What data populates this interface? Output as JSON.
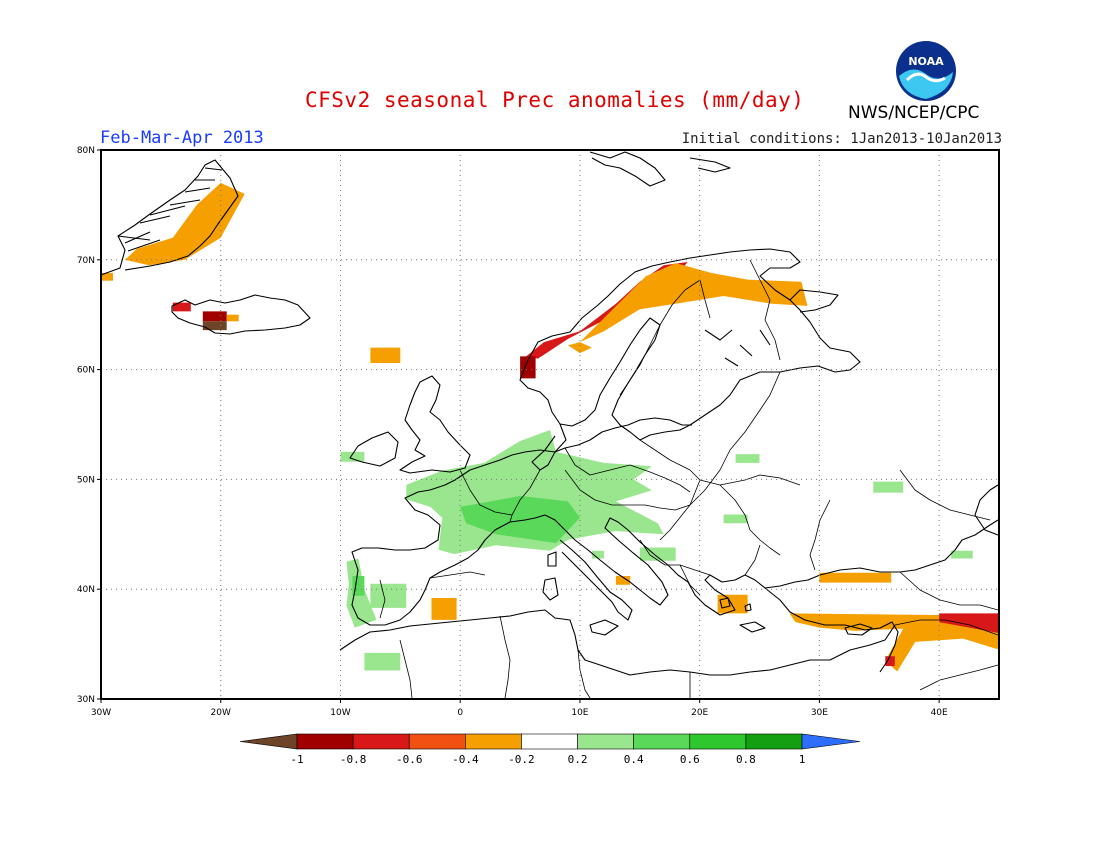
{
  "header": {
    "title": "CFSv2 seasonal Prec anomalies (mm/day)",
    "period": "Feb-Mar-Apr 2013",
    "initial_conditions": "Initial conditions: 1Jan2013-10Jan2013",
    "organization": "NWS/NCEP/CPC",
    "logo_text": "NOAA"
  },
  "map": {
    "lon_range": [
      -30,
      45
    ],
    "lat_range": [
      30,
      80
    ],
    "lon_ticks": [
      {
        "value": -30,
        "label": "30W"
      },
      {
        "value": -20,
        "label": "20W"
      },
      {
        "value": -10,
        "label": "10W"
      },
      {
        "value": 0,
        "label": "0"
      },
      {
        "value": 10,
        "label": "10E"
      },
      {
        "value": 20,
        "label": "20E"
      },
      {
        "value": 30,
        "label": "30E"
      },
      {
        "value": 40,
        "label": "40E"
      }
    ],
    "lat_ticks": [
      {
        "value": 80,
        "label": "80N"
      },
      {
        "value": 70,
        "label": "70N"
      },
      {
        "value": 60,
        "label": "60N"
      },
      {
        "value": 50,
        "label": "50N"
      },
      {
        "value": 40,
        "label": "40N"
      },
      {
        "value": 30,
        "label": "30N"
      }
    ],
    "grid": "dotted"
  },
  "colorbar": {
    "ticks": [
      "-1",
      "-0.8",
      "-0.6",
      "-0.4",
      "-0.2",
      "0.2",
      "0.4",
      "0.6",
      "0.8",
      "1"
    ],
    "colors": [
      "#6e4428",
      "#a00000",
      "#d81818",
      "#f05010",
      "#f5a000",
      "#ffffff",
      "#9ae68e",
      "#5ad85a",
      "#2ec82e",
      "#12a012",
      "#2e6eff"
    ]
  },
  "anomaly_regions": [
    {
      "region": "Greenland east coast",
      "level": -0.3,
      "points": [
        [
          -27,
          71
        ],
        [
          -24,
          72
        ],
        [
          -22,
          75
        ],
        [
          -20,
          77
        ],
        [
          -18,
          76
        ],
        [
          -20,
          72
        ],
        [
          -23,
          70
        ],
        [
          -26,
          69.5
        ],
        [
          -28,
          70
        ]
      ]
    },
    {
      "region": "Greenland south-east tip",
      "level": -0.3,
      "points": [
        [
          -30,
          68.8
        ],
        [
          -29,
          68.8
        ],
        [
          -29,
          68.1
        ],
        [
          -30,
          68.1
        ]
      ]
    },
    {
      "region": "Iceland north-west",
      "level": -0.6,
      "points": [
        [
          -24,
          66.1
        ],
        [
          -22.5,
          66.1
        ],
        [
          -22.5,
          65.3
        ],
        [
          -24,
          65.3
        ]
      ]
    },
    {
      "region": "Iceland south",
      "level": -0.9,
      "points": [
        [
          -21.5,
          65.3
        ],
        [
          -19.5,
          65.3
        ],
        [
          -19.5,
          64.4
        ],
        [
          -21.5,
          64.4
        ]
      ]
    },
    {
      "region": "Iceland south coast",
      "level": -1.0,
      "points": [
        [
          -21.5,
          64.4
        ],
        [
          -19.5,
          64.4
        ],
        [
          -19.5,
          63.6
        ],
        [
          -21.5,
          63.6
        ]
      ]
    },
    {
      "region": "Iceland east",
      "level": -0.3,
      "points": [
        [
          -19.5,
          65
        ],
        [
          -18.5,
          65
        ],
        [
          -18.5,
          64.4
        ],
        [
          -19.5,
          64.4
        ]
      ]
    },
    {
      "region": "Faroe Islands",
      "level": -0.3,
      "points": [
        [
          -7.5,
          62
        ],
        [
          -5,
          62
        ],
        [
          -5,
          60.6
        ],
        [
          -7.5,
          60.6
        ]
      ]
    },
    {
      "region": "Norway coast",
      "level": -0.7,
      "points": [
        [
          5.5,
          61.2
        ],
        [
          7,
          62.5
        ],
        [
          10,
          63.5
        ],
        [
          13,
          66
        ],
        [
          15,
          68
        ],
        [
          17,
          69.5
        ],
        [
          19,
          69.8
        ],
        [
          18,
          68.5
        ],
        [
          15,
          66.5
        ],
        [
          12,
          64.5
        ],
        [
          9,
          62.8
        ],
        [
          6.5,
          61
        ]
      ]
    },
    {
      "region": "Western Norway",
      "level": -0.9,
      "points": [
        [
          5,
          61.2
        ],
        [
          6.3,
          61.2
        ],
        [
          6.3,
          59.2
        ],
        [
          5,
          59.2
        ]
      ]
    },
    {
      "region": "Northern Scandinavia",
      "level": -0.3,
      "points": [
        [
          15.5,
          68.5
        ],
        [
          18,
          69.7
        ],
        [
          21,
          68.8
        ],
        [
          24,
          68.2
        ],
        [
          28.5,
          68
        ],
        [
          29,
          65.8
        ],
        [
          26,
          66
        ],
        [
          22,
          66.7
        ],
        [
          18,
          66
        ],
        [
          15,
          65.5
        ],
        [
          12,
          63.5
        ],
        [
          10,
          62.5
        ]
      ]
    },
    {
      "region": "Norway inland",
      "level": -0.3,
      "points": [
        [
          10,
          62.5
        ],
        [
          11,
          62
        ],
        [
          10,
          61.5
        ],
        [
          9,
          62.2
        ]
      ]
    },
    {
      "region": "Western Europe",
      "level": 0.3,
      "points": [
        [
          -4.5,
          49.5
        ],
        [
          -1.5,
          50.8
        ],
        [
          2,
          51.5
        ],
        [
          5,
          53.5
        ],
        [
          7.5,
          54.5
        ],
        [
          8,
          52.5
        ],
        [
          12,
          51.5
        ],
        [
          16,
          51.2
        ],
        [
          14.5,
          50
        ],
        [
          16,
          49
        ],
        [
          13,
          48
        ],
        [
          16.5,
          46
        ],
        [
          17,
          45
        ],
        [
          13,
          45.3
        ],
        [
          9,
          44.5
        ],
        [
          7.5,
          43.5
        ],
        [
          3,
          44
        ],
        [
          -0.5,
          43.2
        ],
        [
          -1.8,
          43.6
        ],
        [
          -1.5,
          46.5
        ],
        [
          -2.5,
          47.5
        ],
        [
          -4.5,
          48.2
        ]
      ]
    },
    {
      "region": "Central France",
      "level": 0.5,
      "points": [
        [
          0,
          47.5
        ],
        [
          5,
          48.5
        ],
        [
          9,
          48
        ],
        [
          10,
          46.5
        ],
        [
          8,
          44.2
        ],
        [
          3,
          45
        ],
        [
          0.5,
          46
        ]
      ]
    },
    {
      "region": "Ireland",
      "level": 0.3,
      "points": [
        [
          -10,
          52.5
        ],
        [
          -8,
          52.5
        ],
        [
          -8,
          51.6
        ],
        [
          -10,
          51.6
        ]
      ]
    },
    {
      "region": "Iberian west coast",
      "level": 0.4,
      "points": [
        [
          -9.5,
          42.5
        ],
        [
          -8.5,
          42.8
        ],
        [
          -8,
          40
        ],
        [
          -7,
          37.2
        ],
        [
          -8.8,
          36.5
        ],
        [
          -9.5,
          38.5
        ],
        [
          -9.3,
          40.5
        ]
      ]
    },
    {
      "region": "Portugal",
      "level": 0.6,
      "points": [
        [
          -9,
          41.2
        ],
        [
          -8,
          41.2
        ],
        [
          -8,
          39.4
        ],
        [
          -9,
          39.4
        ]
      ]
    },
    {
      "region": "Western Iberia",
      "level": 0.3,
      "points": [
        [
          -7.5,
          40.5
        ],
        [
          -4.5,
          40.5
        ],
        [
          -4.5,
          38.3
        ],
        [
          -7.5,
          38.3
        ]
      ]
    },
    {
      "region": "Morocco",
      "level": 0.3,
      "points": [
        [
          -8,
          34.2
        ],
        [
          -5,
          34.2
        ],
        [
          -5,
          32.6
        ],
        [
          -8,
          32.6
        ]
      ]
    },
    {
      "region": "Eastern Spain",
      "level": -0.3,
      "points": [
        [
          -2.4,
          39.2
        ],
        [
          -0.3,
          39.2
        ],
        [
          -0.3,
          37.2
        ],
        [
          -2.4,
          37.2
        ]
      ]
    },
    {
      "region": "Ukraine",
      "level": 0.3,
      "points": [
        [
          23,
          52.3
        ],
        [
          25,
          52.3
        ],
        [
          25,
          51.5
        ],
        [
          23,
          51.5
        ]
      ]
    },
    {
      "region": "Black Sea north",
      "level": 0.3,
      "points": [
        [
          34.5,
          49.8
        ],
        [
          37,
          49.8
        ],
        [
          37,
          48.8
        ],
        [
          34.5,
          48.8
        ]
      ]
    },
    {
      "region": "Hungary",
      "level": 0.3,
      "points": [
        [
          22,
          46.8
        ],
        [
          24,
          46.8
        ],
        [
          24,
          46
        ],
        [
          22,
          46
        ]
      ]
    },
    {
      "region": "Caucasus",
      "level": 0.3,
      "points": [
        [
          41,
          43.5
        ],
        [
          42.8,
          43.5
        ],
        [
          42.8,
          42.8
        ],
        [
          41,
          42.8
        ]
      ]
    },
    {
      "region": "Balkans",
      "level": 0.3,
      "points": [
        [
          15,
          43.8
        ],
        [
          18,
          43.8
        ],
        [
          18,
          42.6
        ],
        [
          15,
          42.6
        ]
      ]
    },
    {
      "region": "Italy",
      "level": 0.3,
      "points": [
        [
          11,
          43.5
        ],
        [
          12,
          43.5
        ],
        [
          12,
          42.8
        ],
        [
          11,
          42.8
        ]
      ]
    },
    {
      "region": "Southern Italy",
      "level": -0.3,
      "points": [
        [
          13,
          41.2
        ],
        [
          14.2,
          41.2
        ],
        [
          14.2,
          40.4
        ],
        [
          13,
          40.4
        ]
      ]
    },
    {
      "region": "Greece",
      "level": -0.3,
      "points": [
        [
          21.5,
          39.5
        ],
        [
          24,
          39.5
        ],
        [
          24,
          37.8
        ],
        [
          21.5,
          37.8
        ]
      ]
    },
    {
      "region": "Black Sea",
      "level": -0.3,
      "points": [
        [
          30,
          41.5
        ],
        [
          36,
          41.5
        ],
        [
          36,
          40.6
        ],
        [
          30,
          40.6
        ]
      ]
    },
    {
      "region": "Turkey south",
      "level": -0.3,
      "points": [
        [
          27.5,
          37.8
        ],
        [
          45,
          37.6
        ],
        [
          45,
          34.5
        ],
        [
          42,
          35.5
        ],
        [
          38,
          35.2
        ],
        [
          36.5,
          32.5
        ],
        [
          35.5,
          33.5
        ],
        [
          37,
          36.4
        ],
        [
          33,
          36.2
        ],
        [
          30,
          36.5
        ],
        [
          28,
          37
        ]
      ]
    },
    {
      "region": "Turkey south-east",
      "level": -0.6,
      "points": [
        [
          40,
          37.8
        ],
        [
          45,
          37.8
        ],
        [
          45,
          36
        ],
        [
          42,
          36.6
        ],
        [
          40,
          37
        ]
      ]
    },
    {
      "region": "Levant",
      "level": -0.6,
      "points": [
        [
          35.5,
          33.9
        ],
        [
          36.3,
          33.9
        ],
        [
          36.3,
          33
        ],
        [
          35.5,
          33
        ]
      ]
    }
  ]
}
